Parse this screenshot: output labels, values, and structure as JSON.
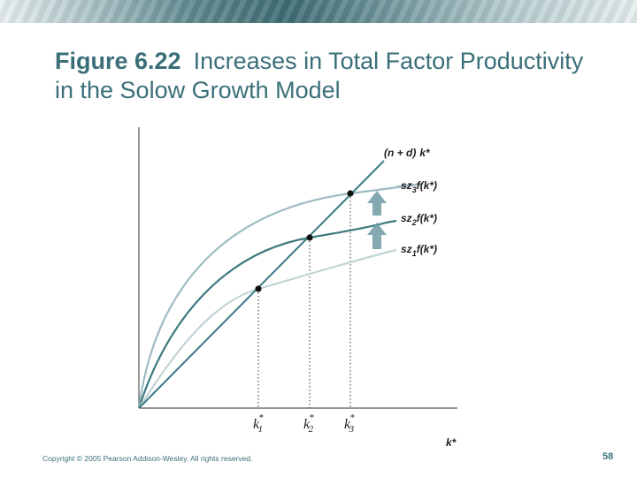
{
  "slide": {
    "title_fig": "Figure 6.22",
    "title_rest": "Increases in Total Factor Productivity in the Solow Growth Model",
    "copyright": "Copyright © 2005 Pearson Addison-Wesley. All rights reserved.",
    "page_number": "58"
  },
  "diagram": {
    "line_label": {
      "a": "(n + d)",
      "b": "k*"
    },
    "curves": [
      {
        "pre": "sz",
        "sub": "3",
        "post": "f(k*)",
        "color": "#9fbcc2"
      },
      {
        "pre": "sz",
        "sub": "2",
        "post": "f(k*)",
        "color": "#3d7b7f"
      },
      {
        "pre": "sz",
        "sub": "1",
        "post": "f(k*)",
        "color": "#c3d3d6"
      }
    ],
    "steady_states": [
      {
        "base": "k",
        "sup": "*",
        "sub": "1"
      },
      {
        "base": "k",
        "sup": "*",
        "sub": "2"
      },
      {
        "base": "k",
        "sup": "*",
        "sub": "3"
      }
    ],
    "x_axis_label": "k*",
    "line_color": "#3a7a83",
    "arrow_color": "#6f9aa3"
  }
}
